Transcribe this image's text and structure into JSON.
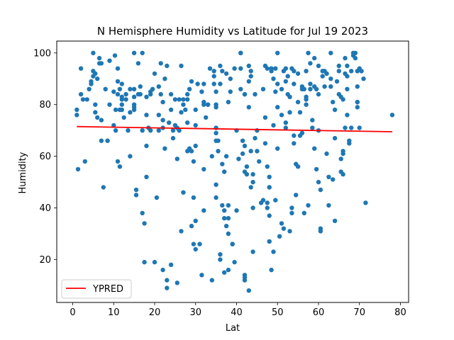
{
  "chart_data": {
    "type": "scatter",
    "title": "N Hemisphere Humidity vs Latitude for Jul 19 2023",
    "xlabel": "Lat",
    "ylabel": "Humidity",
    "xlim": [
      -3.9,
      82.0
    ],
    "ylim": [
      3.4,
      104.6
    ],
    "xticks": [
      0,
      10,
      20,
      30,
      40,
      50,
      60,
      70,
      80
    ],
    "yticks": [
      20,
      40,
      60,
      80,
      100
    ],
    "grid": false,
    "legend_position": "lower-left",
    "colors": {
      "points": "#1f77b4",
      "regression": "#ff0000"
    },
    "regression": {
      "name": "YPRED",
      "x": [
        1.0,
        78.0
      ],
      "y": [
        71.5,
        69.5
      ]
    },
    "points": [
      [
        1,
        78
      ],
      [
        1,
        76
      ],
      [
        1.3,
        55
      ],
      [
        2,
        84
      ],
      [
        2,
        94
      ],
      [
        2.5,
        82
      ],
      [
        3,
        58
      ],
      [
        3.5,
        82
      ],
      [
        4,
        86
      ],
      [
        4.5,
        89
      ],
      [
        4.5,
        88
      ],
      [
        5,
        91
      ],
      [
        5,
        93
      ],
      [
        5,
        100
      ],
      [
        5.5,
        80
      ],
      [
        5.5,
        92
      ],
      [
        5.5,
        77
      ],
      [
        6,
        75
      ],
      [
        6,
        90
      ],
      [
        6.5,
        98
      ],
      [
        6.5,
        96
      ],
      [
        7,
        74
      ],
      [
        7,
        66
      ],
      [
        7,
        96
      ],
      [
        7.5,
        48
      ],
      [
        8,
        86
      ],
      [
        8.5,
        66
      ],
      [
        9,
        80
      ],
      [
        9,
        97
      ],
      [
        10,
        85
      ],
      [
        10,
        72
      ],
      [
        10.3,
        99
      ],
      [
        10.5,
        70
      ],
      [
        10.5,
        78
      ],
      [
        11,
        58
      ],
      [
        11,
        84
      ],
      [
        11,
        89
      ],
      [
        11,
        94
      ],
      [
        11.5,
        56
      ],
      [
        11.5,
        86
      ],
      [
        11.5,
        78
      ],
      [
        12,
        83
      ],
      [
        12,
        88
      ],
      [
        12,
        82
      ],
      [
        12,
        80
      ],
      [
        12,
        78
      ],
      [
        12.5,
        75
      ],
      [
        13,
        84
      ],
      [
        13,
        82
      ],
      [
        13.5,
        70
      ],
      [
        14,
        86
      ],
      [
        14,
        77
      ],
      [
        14,
        60
      ],
      [
        15,
        100
      ],
      [
        15,
        83
      ],
      [
        15,
        79
      ],
      [
        15,
        78
      ],
      [
        15,
        80
      ],
      [
        15,
        86
      ],
      [
        15.5,
        47
      ],
      [
        15.5,
        45
      ],
      [
        16,
        96
      ],
      [
        16,
        84
      ],
      [
        16.5,
        87
      ],
      [
        16.5,
        84
      ],
      [
        17,
        100
      ],
      [
        17,
        38
      ],
      [
        17,
        70
      ],
      [
        17.5,
        34
      ],
      [
        17.5,
        19
      ],
      [
        18,
        64
      ],
      [
        18,
        76
      ],
      [
        18,
        83
      ],
      [
        18,
        52
      ],
      [
        18.5,
        71
      ],
      [
        19,
        70
      ],
      [
        19,
        85
      ],
      [
        19,
        84
      ],
      [
        19.5,
        86
      ],
      [
        20,
        19
      ],
      [
        20,
        92
      ],
      [
        20.5,
        44
      ],
      [
        21,
        76
      ],
      [
        21,
        70
      ],
      [
        21,
        87
      ],
      [
        21.5,
        84
      ],
      [
        21.5,
        96
      ],
      [
        22,
        71
      ],
      [
        22,
        81
      ],
      [
        22,
        74
      ],
      [
        22,
        16
      ],
      [
        22.5,
        90
      ],
      [
        22.5,
        63
      ],
      [
        23,
        95
      ],
      [
        23,
        12
      ],
      [
        23,
        9
      ],
      [
        23.5,
        73
      ],
      [
        24,
        84
      ],
      [
        24,
        78
      ],
      [
        24,
        18
      ],
      [
        24.5,
        67
      ],
      [
        24.5,
        70
      ],
      [
        25,
        72
      ],
      [
        25,
        82
      ],
      [
        25.5,
        71
      ],
      [
        25.5,
        59
      ],
      [
        25.5,
        11
      ],
      [
        26,
        82
      ],
      [
        26,
        70
      ],
      [
        26.5,
        77
      ],
      [
        26.5,
        95
      ],
      [
        26.5,
        31
      ],
      [
        27,
        46
      ],
      [
        27,
        80
      ],
      [
        27,
        82
      ],
      [
        27.5,
        78
      ],
      [
        28,
        84
      ],
      [
        28,
        73
      ],
      [
        28,
        62
      ],
      [
        28,
        82
      ],
      [
        28.5,
        86
      ],
      [
        28.5,
        63
      ],
      [
        29,
        62
      ],
      [
        29,
        89
      ],
      [
        29,
        33
      ],
      [
        29.5,
        44
      ],
      [
        29.5,
        58
      ],
      [
        29.5,
        26
      ],
      [
        30,
        35
      ],
      [
        30,
        72
      ],
      [
        30,
        78
      ],
      [
        30,
        64
      ],
      [
        30,
        24
      ],
      [
        30.5,
        88
      ],
      [
        31,
        26
      ],
      [
        31.5,
        14
      ],
      [
        31.5,
        85
      ],
      [
        32,
        81
      ],
      [
        32,
        80
      ],
      [
        32,
        55
      ],
      [
        32,
        39
      ],
      [
        32,
        88
      ],
      [
        32.5,
        75
      ],
      [
        33,
        80
      ],
      [
        33,
        80
      ],
      [
        33.5,
        94
      ],
      [
        34,
        60
      ],
      [
        34,
        12
      ],
      [
        34.5,
        91
      ],
      [
        34.5,
        93
      ],
      [
        34.5,
        88
      ],
      [
        35,
        80
      ],
      [
        35,
        79
      ],
      [
        35,
        85
      ],
      [
        35,
        71
      ],
      [
        35,
        69
      ],
      [
        35,
        66
      ],
      [
        35,
        49
      ],
      [
        35,
        44
      ],
      [
        35.5,
        66
      ],
      [
        35.5,
        62
      ],
      [
        36,
        95
      ],
      [
        36,
        88
      ],
      [
        36,
        22
      ],
      [
        36,
        20
      ],
      [
        36.5,
        93
      ],
      [
        36.5,
        41
      ],
      [
        36.5,
        57
      ],
      [
        37,
        15
      ],
      [
        37,
        54
      ],
      [
        37,
        36
      ],
      [
        37,
        39
      ],
      [
        37.5,
        92
      ],
      [
        37.5,
        60
      ],
      [
        37.5,
        33
      ],
      [
        38,
        81
      ],
      [
        38,
        16
      ],
      [
        38,
        41
      ],
      [
        38,
        36
      ],
      [
        38,
        30
      ],
      [
        38.5,
        85
      ],
      [
        38.5,
        90
      ],
      [
        39,
        26
      ],
      [
        39,
        26
      ],
      [
        39.5,
        94
      ],
      [
        39.5,
        19
      ],
      [
        40,
        39
      ],
      [
        40,
        70
      ],
      [
        40.5,
        59
      ],
      [
        41,
        100
      ],
      [
        41,
        100
      ],
      [
        41,
        86
      ],
      [
        41,
        94
      ],
      [
        41.5,
        61
      ],
      [
        41.5,
        66
      ],
      [
        42,
        84
      ],
      [
        42,
        84
      ],
      [
        42,
        64
      ],
      [
        42,
        54
      ],
      [
        42,
        14
      ],
      [
        42,
        13
      ],
      [
        42,
        12
      ],
      [
        42.5,
        56
      ],
      [
        42.5,
        53
      ],
      [
        43,
        95
      ],
      [
        43,
        79
      ],
      [
        43,
        89
      ],
      [
        43,
        8
      ],
      [
        43.5,
        48
      ],
      [
        43.5,
        62
      ],
      [
        43.5,
        91
      ],
      [
        43.5,
        93
      ],
      [
        44,
        53
      ],
      [
        44,
        50
      ],
      [
        44,
        23
      ],
      [
        44,
        40
      ],
      [
        44.5,
        67
      ],
      [
        44.5,
        84
      ],
      [
        45,
        70
      ],
      [
        45,
        62
      ],
      [
        45.5,
        58
      ],
      [
        46,
        42
      ],
      [
        46.5,
        86
      ],
      [
        46.5,
        43
      ],
      [
        47,
        95
      ],
      [
        47,
        65
      ],
      [
        47,
        75
      ],
      [
        47.5,
        94
      ],
      [
        47.5,
        40
      ],
      [
        47.5,
        56
      ],
      [
        47.5,
        42
      ],
      [
        48,
        52
      ],
      [
        48,
        48
      ],
      [
        48,
        48
      ],
      [
        48,
        37
      ],
      [
        48,
        27
      ],
      [
        48,
        27
      ],
      [
        48.5,
        93
      ],
      [
        48.5,
        94
      ],
      [
        48.5,
        16
      ],
      [
        49,
        23
      ],
      [
        49,
        72
      ],
      [
        49,
        90
      ],
      [
        49.5,
        43
      ],
      [
        49.5,
        85
      ],
      [
        49.5,
        94
      ],
      [
        50,
        100
      ],
      [
        50,
        88
      ],
      [
        50,
        63
      ],
      [
        50,
        79
      ],
      [
        50.5,
        29
      ],
      [
        51,
        76
      ],
      [
        51,
        34
      ],
      [
        51,
        86
      ],
      [
        51.5,
        93
      ],
      [
        51.5,
        32
      ],
      [
        52,
        73
      ],
      [
        52,
        89
      ],
      [
        52,
        71
      ],
      [
        52,
        94
      ],
      [
        52.5,
        91
      ],
      [
        52.5,
        84
      ],
      [
        53,
        77
      ],
      [
        53,
        83
      ],
      [
        53,
        31
      ],
      [
        53.5,
        38
      ],
      [
        53.5,
        40
      ],
      [
        53.5,
        94
      ],
      [
        54,
        93
      ],
      [
        54,
        88
      ],
      [
        54,
        65
      ],
      [
        54,
        68
      ],
      [
        54.5,
        57
      ],
      [
        54.5,
        45
      ],
      [
        55,
        92
      ],
      [
        55,
        81
      ],
      [
        55,
        56
      ],
      [
        55.5,
        77
      ],
      [
        55.5,
        68
      ],
      [
        56,
        69
      ],
      [
        56,
        87
      ],
      [
        56,
        86
      ],
      [
        56.5,
        86
      ],
      [
        56.5,
        38
      ],
      [
        57,
        83
      ],
      [
        57,
        82
      ],
      [
        57,
        80
      ],
      [
        57,
        93
      ],
      [
        57.5,
        100
      ],
      [
        57.5,
        41
      ],
      [
        58,
        96
      ],
      [
        58,
        86
      ],
      [
        58,
        88
      ],
      [
        58.5,
        74
      ],
      [
        58.5,
        71
      ],
      [
        59,
        87
      ],
      [
        59,
        98
      ],
      [
        59,
        63
      ],
      [
        59.5,
        86
      ],
      [
        59.5,
        55
      ],
      [
        60,
        84
      ],
      [
        60,
        95
      ],
      [
        60,
        70
      ],
      [
        60,
        50
      ],
      [
        60.5,
        32
      ],
      [
        60.5,
        31
      ],
      [
        60.5,
        47
      ],
      [
        61,
        91
      ],
      [
        61,
        93
      ],
      [
        61.5,
        93
      ],
      [
        61.5,
        87
      ],
      [
        62,
        92
      ],
      [
        62,
        61
      ],
      [
        62,
        92
      ],
      [
        62.5,
        52
      ],
      [
        62.5,
        41
      ],
      [
        63,
        100
      ],
      [
        63,
        90
      ],
      [
        63,
        87
      ],
      [
        63.5,
        81
      ],
      [
        63.5,
        51
      ],
      [
        64,
        67
      ],
      [
        64,
        35
      ],
      [
        64,
        78
      ],
      [
        64.5,
        89
      ],
      [
        65,
        93
      ],
      [
        65,
        84
      ],
      [
        65,
        95
      ],
      [
        65.5,
        83
      ],
      [
        65.5,
        59
      ],
      [
        65.5,
        54
      ],
      [
        66,
        62
      ],
      [
        66,
        61
      ],
      [
        66,
        82
      ],
      [
        66,
        53
      ],
      [
        66.5,
        71
      ],
      [
        66.5,
        92
      ],
      [
        66.5,
        98
      ],
      [
        67,
        76
      ],
      [
        67,
        95
      ],
      [
        67,
        91
      ],
      [
        67,
        86
      ],
      [
        67.5,
        66
      ],
      [
        67.5,
        65
      ],
      [
        68,
        71
      ],
      [
        68,
        93
      ],
      [
        68.5,
        100
      ],
      [
        68.5,
        99
      ],
      [
        69,
        100
      ],
      [
        69,
        98
      ],
      [
        69.5,
        81
      ],
      [
        69.5,
        81
      ],
      [
        69.5,
        93
      ],
      [
        69.5,
        87
      ],
      [
        69.5,
        79
      ],
      [
        70,
        94
      ],
      [
        70,
        71
      ],
      [
        70.5,
        93
      ],
      [
        71,
        90
      ],
      [
        71.5,
        42
      ],
      [
        78,
        76
      ]
    ]
  }
}
